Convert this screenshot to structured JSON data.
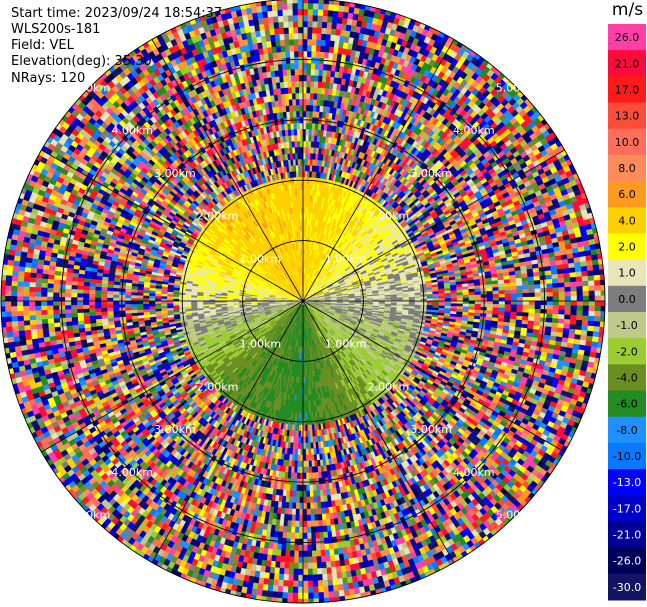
{
  "header": {
    "start_time": "Start time: 2023/09/24 18:54:37",
    "site": "WLS200s-181",
    "field": "Field: VEL",
    "elevation": "Elevation(deg): 35.30",
    "nrays": "NRays: 120"
  },
  "colorbar": {
    "title": "m/s",
    "levels": [
      {
        "label": "26.0",
        "color": "#ff3fa8",
        "text_color": "#000000"
      },
      {
        "label": "21.0",
        "color": "#ff0a3c",
        "text_color": "#000000"
      },
      {
        "label": "17.0",
        "color": "#ff1a1a",
        "text_color": "#000000"
      },
      {
        "label": "13.0",
        "color": "#ff4d3a",
        "text_color": "#000000"
      },
      {
        "label": "10.0",
        "color": "#ff6e5a",
        "text_color": "#000000"
      },
      {
        "label": "8.0",
        "color": "#ff8a5c",
        "text_color": "#000000"
      },
      {
        "label": "6.0",
        "color": "#ff9a1e",
        "text_color": "#000000"
      },
      {
        "label": "4.0",
        "color": "#ffd000",
        "text_color": "#000000"
      },
      {
        "label": "2.0",
        "color": "#ffff00",
        "text_color": "#000000"
      },
      {
        "label": "1.0",
        "color": "#e6e6b8",
        "text_color": "#000000"
      },
      {
        "label": "0.0",
        "color": "#7d7d7d",
        "text_color": "#000000"
      },
      {
        "label": "-1.0",
        "color": "#bfc98a",
        "text_color": "#000000"
      },
      {
        "label": "-2.0",
        "color": "#9acd32",
        "text_color": "#000000"
      },
      {
        "label": "-4.0",
        "color": "#6b8e23",
        "text_color": "#000000"
      },
      {
        "label": "-6.0",
        "color": "#228b22",
        "text_color": "#000000"
      },
      {
        "label": "-8.0",
        "color": "#1e90ff",
        "text_color": "#000000"
      },
      {
        "label": "-10.0",
        "color": "#0a78ff",
        "text_color": "#000000"
      },
      {
        "label": "-13.0",
        "color": "#0000ff",
        "text_color": "#ffffff"
      },
      {
        "label": "-17.0",
        "color": "#0000c8",
        "text_color": "#ffffff"
      },
      {
        "label": "-21.0",
        "color": "#000096",
        "text_color": "#ffffff"
      },
      {
        "label": "-26.0",
        "color": "#00005a",
        "text_color": "#ffffff"
      },
      {
        "label": "-30.0",
        "color": "#141464",
        "text_color": "#ffffff"
      }
    ]
  },
  "chart_data": {
    "type": "heatmap",
    "projection": "polar PPI",
    "field": "VEL",
    "units": "m/s",
    "n_rays": 120,
    "max_range_km": 5.0,
    "range_ring_labels": [
      {
        "label": "1.00km",
        "range_km": 1.0
      },
      {
        "label": "2.00km",
        "range_km": 2.0
      },
      {
        "label": "3.00km",
        "range_km": 3.0
      },
      {
        "label": "4.00km",
        "range_km": 4.0
      },
      {
        "label": "5.00km",
        "range_km": 5.0
      }
    ],
    "clean_region_range_km": 2.0,
    "velocity_pattern": {
      "north_sector": 4.0,
      "north_east": 2.0,
      "east": 0.0,
      "south_east": -2.0,
      "south": -6.0,
      "south_west": -4.0,
      "west": 1.0,
      "north_west": 4.0
    },
    "spoke_azimuths_deg": [
      0,
      30,
      60,
      90,
      120,
      150,
      180,
      210,
      240,
      270,
      300,
      330
    ]
  }
}
